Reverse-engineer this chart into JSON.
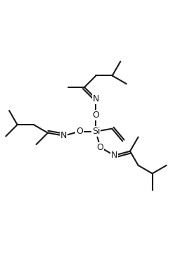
{
  "background": "#ffffff",
  "line_color": "#1a1a1a",
  "line_width": 1.5,
  "font_size": 9,
  "fig_width": 2.56,
  "fig_height": 3.65,
  "dpi": 100,
  "bl": 0.55,
  "si": [
    0.0,
    0.0
  ],
  "xlim": [
    -3.2,
    2.8
  ],
  "ylim": [
    -4.0,
    4.2
  ]
}
